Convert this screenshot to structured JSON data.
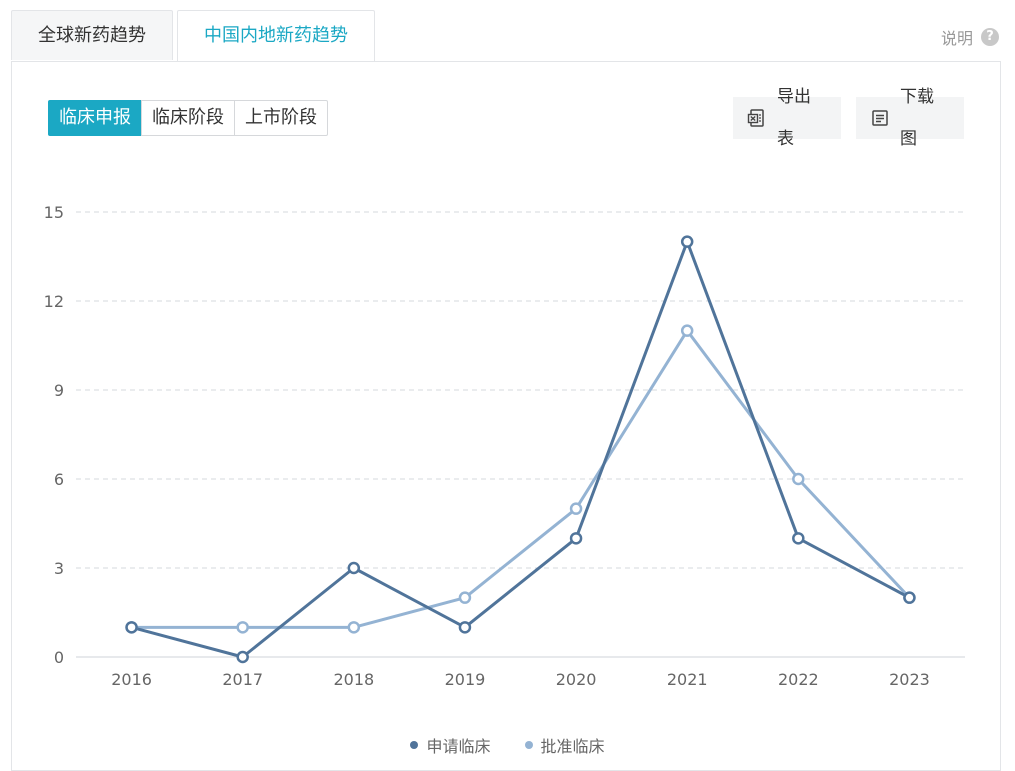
{
  "tabs": [
    {
      "label": "全球新药趋势",
      "active": false
    },
    {
      "label": "中国内地新药趋势",
      "active": true
    }
  ],
  "help": {
    "label": "说明",
    "icon": "question-icon"
  },
  "segments": [
    {
      "label": "临床申报",
      "active": true
    },
    {
      "label": "临床阶段",
      "active": false
    },
    {
      "label": "上市阶段",
      "active": false
    }
  ],
  "actions": {
    "export_label": "导出表",
    "export_icon": "excel-icon",
    "download_label": "下载图",
    "download_icon": "document-icon"
  },
  "colors": {
    "accent": "#1ba8c4",
    "series1": "#50749a",
    "series2": "#94b3d3"
  },
  "chart_data": {
    "type": "line",
    "x": [
      "2016",
      "2017",
      "2018",
      "2019",
      "2020",
      "2021",
      "2022",
      "2023"
    ],
    "series": [
      {
        "name": "申请临床",
        "values": [
          1,
          0,
          3,
          1,
          4,
          14,
          4,
          2
        ],
        "color": "#50749a"
      },
      {
        "name": "批准临床",
        "values": [
          1,
          1,
          1,
          2,
          5,
          11,
          6,
          2
        ],
        "color": "#94b3d3"
      }
    ],
    "yticks": [
      0,
      3,
      6,
      9,
      12,
      15
    ],
    "ylim": [
      0,
      15
    ],
    "grid": true,
    "legend": "bottom-center"
  }
}
